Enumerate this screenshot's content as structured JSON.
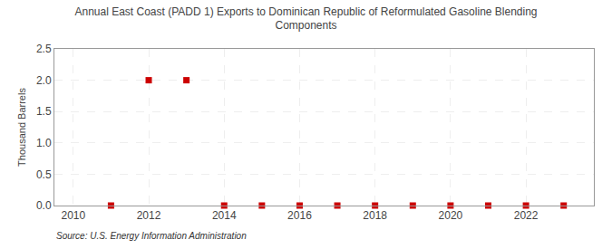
{
  "chart_data": {
    "type": "scatter",
    "title": "Annual East Coast (PADD 1) Exports to Dominican Republic of Reformulated Gasoline Blending\nComponents",
    "y_label": "Thousand Barrels",
    "annotations": [
      "Source: U.S. Energy Information Administration"
    ],
    "x": [
      2011,
      2012,
      2013,
      2014,
      2015,
      2016,
      2017,
      2018,
      2019,
      2020,
      2021,
      2022,
      2023
    ],
    "values": [
      0,
      2,
      2,
      0,
      0,
      0,
      0,
      0,
      0,
      0,
      0,
      0,
      0
    ],
    "color": "#cc0000",
    "marker": "square",
    "xlim": [
      2009.5,
      2023.8
    ],
    "xticks": [
      2010,
      2012,
      2014,
      2016,
      2018,
      2020,
      2022
    ],
    "ylim": [
      0,
      2.5
    ],
    "yticks": [
      {
        "value": 0.0,
        "label": "0.0"
      },
      0.5,
      {
        "value": 1.0,
        "label": "1.0"
      },
      1.5,
      {
        "value": 2.0,
        "label": "2.0"
      },
      2.5
    ],
    "grid": true
  }
}
